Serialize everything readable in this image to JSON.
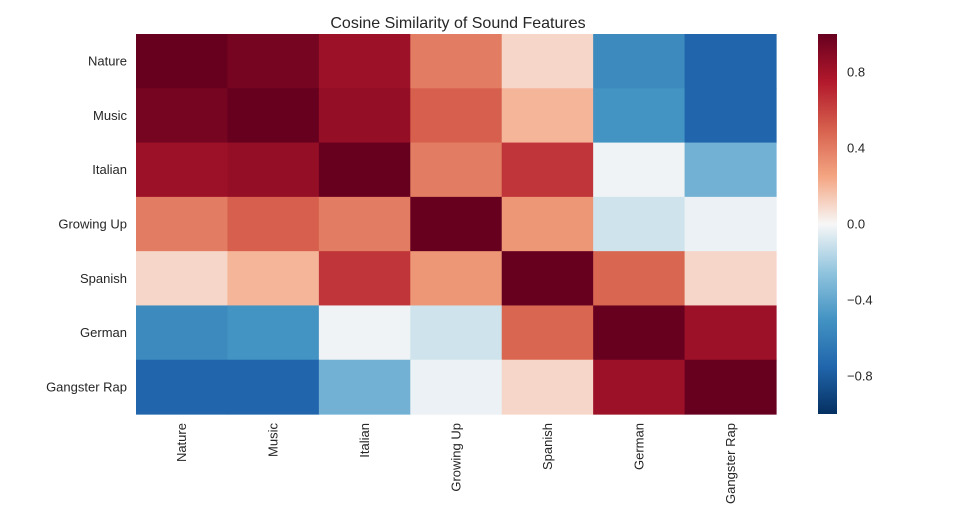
{
  "chart_data": {
    "type": "heatmap",
    "title": "Cosine Similarity of Sound Features",
    "xlabel": "",
    "ylabel": "",
    "rows": [
      "Nature",
      "Music",
      "Italian",
      "Growing Up",
      "Spanish",
      "German",
      "Gangster Rap"
    ],
    "cols": [
      "Nature",
      "Music",
      "Italian",
      "Growing Up",
      "Spanish",
      "German",
      "Gangster Rap"
    ],
    "values": [
      [
        1.0,
        0.95,
        0.82,
        0.4,
        0.1,
        -0.55,
        -0.75
      ],
      [
        0.95,
        1.0,
        0.85,
        0.5,
        0.2,
        -0.5,
        -0.75
      ],
      [
        0.82,
        0.85,
        1.0,
        0.4,
        0.65,
        -0.02,
        -0.35
      ],
      [
        0.4,
        0.5,
        0.4,
        1.0,
        0.3,
        -0.1,
        -0.03
      ],
      [
        0.1,
        0.2,
        0.65,
        0.3,
        1.0,
        0.48,
        0.1
      ],
      [
        -0.55,
        -0.5,
        -0.02,
        -0.1,
        0.48,
        1.0,
        0.82
      ],
      [
        -0.75,
        -0.75,
        -0.35,
        -0.03,
        0.1,
        0.82,
        1.0
      ]
    ],
    "colorbar": {
      "range": [
        -1.0,
        1.0
      ],
      "ticks": [
        0.8,
        0.4,
        0.0,
        -0.4,
        -0.8
      ],
      "tick_labels": [
        "0.8",
        "0.4",
        "0.0",
        "−0.4",
        "−0.8"
      ],
      "colormap": "RdBu_r"
    },
    "grid": false,
    "legend": "right"
  }
}
